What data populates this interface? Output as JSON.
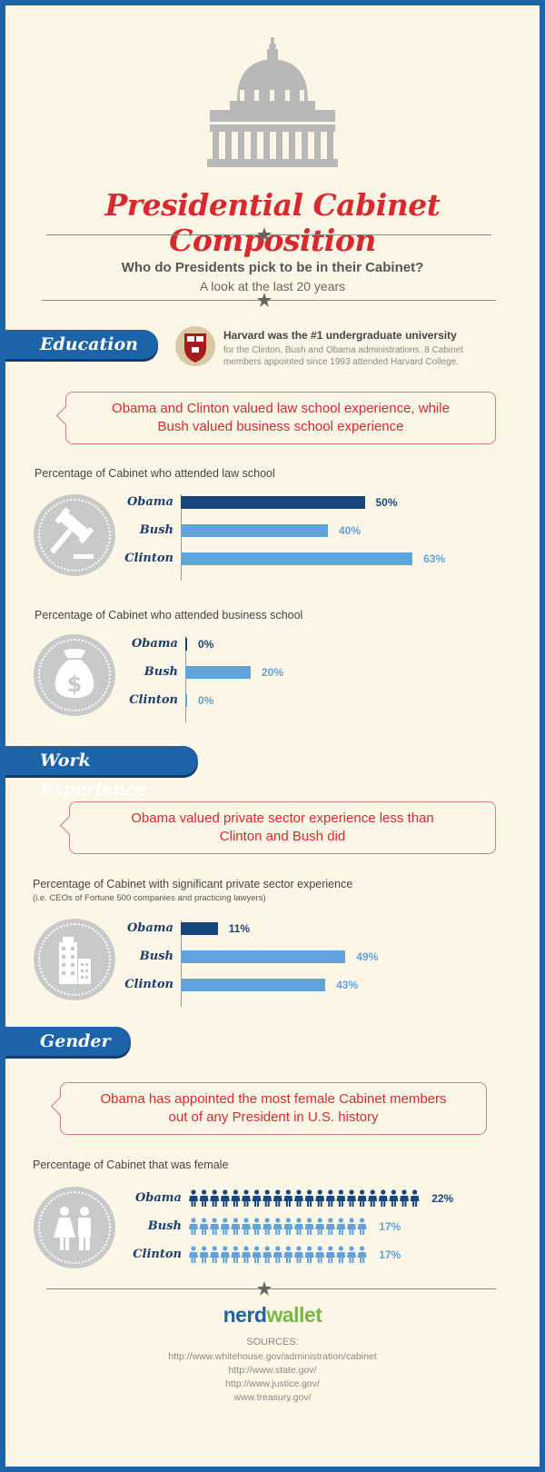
{
  "title": "Presidential Cabinet Composition",
  "subtitle": "Who do Presidents pick to be in their Cabinet?",
  "subtitle2": "A look at the last 20 years",
  "education": {
    "label": "Education",
    "harvard_title": "Harvard was the #1 undergraduate university",
    "harvard_line1": "for the Clinton, Bush and Obama administrations. 8 Cabinet",
    "harvard_line2": "members appointed since 1993 attended Harvard College.",
    "callout_line1": "Obama and Clinton valued law school experience, while",
    "callout_line2": "Bush valued business school experience"
  },
  "work": {
    "label": "Work Experience",
    "callout_line1": "Obama valued private sector experience less than",
    "callout_line2": "Clinton and Bush did"
  },
  "gender": {
    "label": "Gender",
    "callout_line1": "Obama has appointed the most female Cabinet members",
    "callout_line2": "out of any President in U.S. history"
  },
  "colors": {
    "dark_bar": "#17467f",
    "light_bar": "#5fa2dc",
    "accent_red": "#d9282e",
    "ribbon": "#1c63a8"
  },
  "chart_data": [
    {
      "type": "bar",
      "title": "Percentage of Cabinet who attended law school",
      "icon": "gavel-icon",
      "categories": [
        "Obama",
        "Bush",
        "Clinton"
      ],
      "values": [
        50,
        40,
        63
      ],
      "labels": [
        "50%",
        "40%",
        "63%"
      ]
    },
    {
      "type": "bar",
      "title": "Percentage of Cabinet who attended business school",
      "icon": "money-bag-icon",
      "categories": [
        "Obama",
        "Bush",
        "Clinton"
      ],
      "values": [
        0,
        20,
        0
      ],
      "labels": [
        "0%",
        "20%",
        "0%"
      ]
    },
    {
      "type": "bar",
      "title": "Percentage of Cabinet with significant private sector experience",
      "note": "(i.e. CEOs of Fortune 500 companies and practicing lawyers)",
      "icon": "buildings-icon",
      "categories": [
        "Obama",
        "Bush",
        "Clinton"
      ],
      "values": [
        11,
        49,
        43
      ],
      "labels": [
        "11%",
        "49%",
        "43%"
      ]
    },
    {
      "type": "bar",
      "title": "Percentage of Cabinet that was female",
      "icon": "woman-man-icon",
      "categories": [
        "Obama",
        "Bush",
        "Clinton"
      ],
      "values": [
        22,
        17,
        17
      ],
      "labels": [
        "22%",
        "17%",
        "17%"
      ]
    }
  ],
  "footer": {
    "logo_nerd": "nerd",
    "logo_wallet": "wallet",
    "sources_title": "SOURCES:",
    "sources": [
      "http://www.whitehouse.gov/administration/cabinet",
      "http://www.state.gov/",
      "http://www.justice.gov/",
      "www.treasury.gov/"
    ]
  }
}
